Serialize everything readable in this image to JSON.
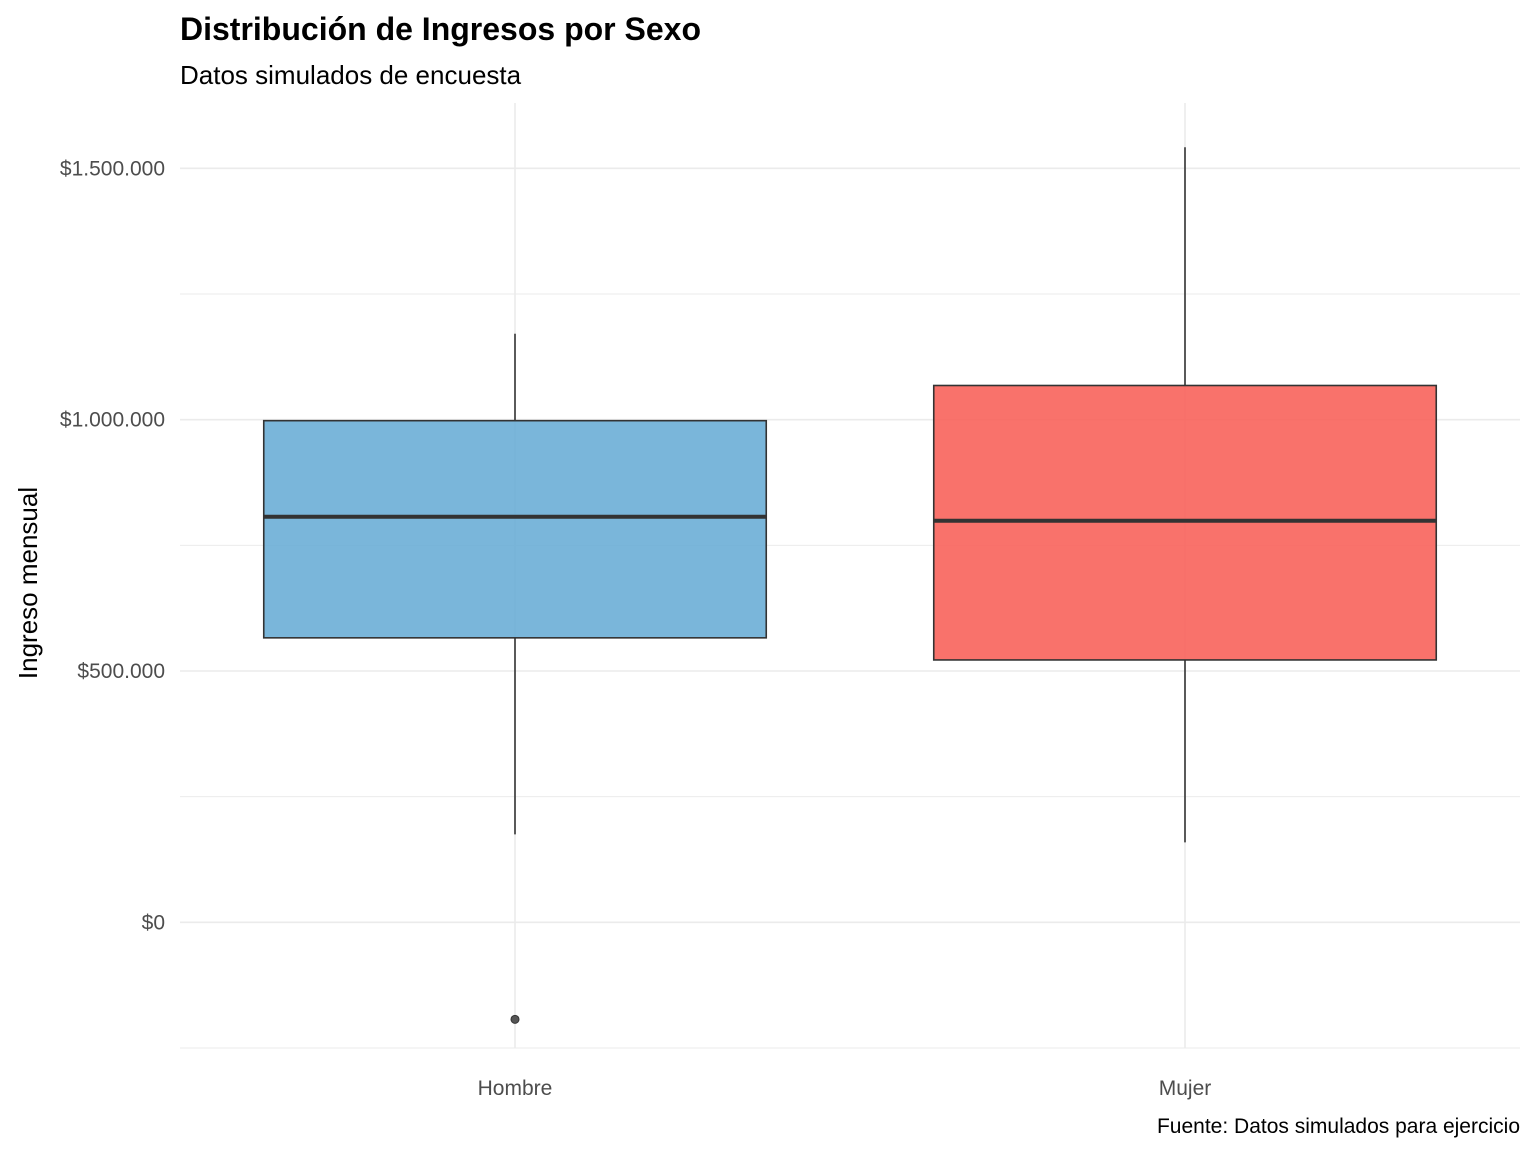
{
  "chart_data": {
    "type": "boxplot",
    "title": "Distribución de Ingresos por Sexo",
    "subtitle": "Datos simulados de encuesta",
    "xlabel": "",
    "ylabel": "Ingreso mensual",
    "caption": "Fuente: Datos simulados para ejercicio",
    "categories": [
      "Hombre",
      "Mujer"
    ],
    "ylim": [
      -250000,
      1630000
    ],
    "yticks": [
      0,
      500000,
      1000000,
      1500000
    ],
    "ytick_labels": [
      "$0",
      "$500.000",
      "$1.000.000",
      "$1.500.000"
    ],
    "grid": true,
    "legend": "none",
    "boxes": [
      {
        "category": "Hombre",
        "whisker_low": 175000,
        "q1": 566000,
        "median": 807000,
        "q3": 998000,
        "whisker_high": 1171000,
        "outliers": [
          -193000
        ],
        "color": "#6baed6"
      },
      {
        "category": "Mujer",
        "whisker_low": 159000,
        "q1": 522000,
        "median": 799000,
        "q3": 1068000,
        "whisker_high": 1542000,
        "outliers": [],
        "color": "#f8635b"
      }
    ]
  }
}
